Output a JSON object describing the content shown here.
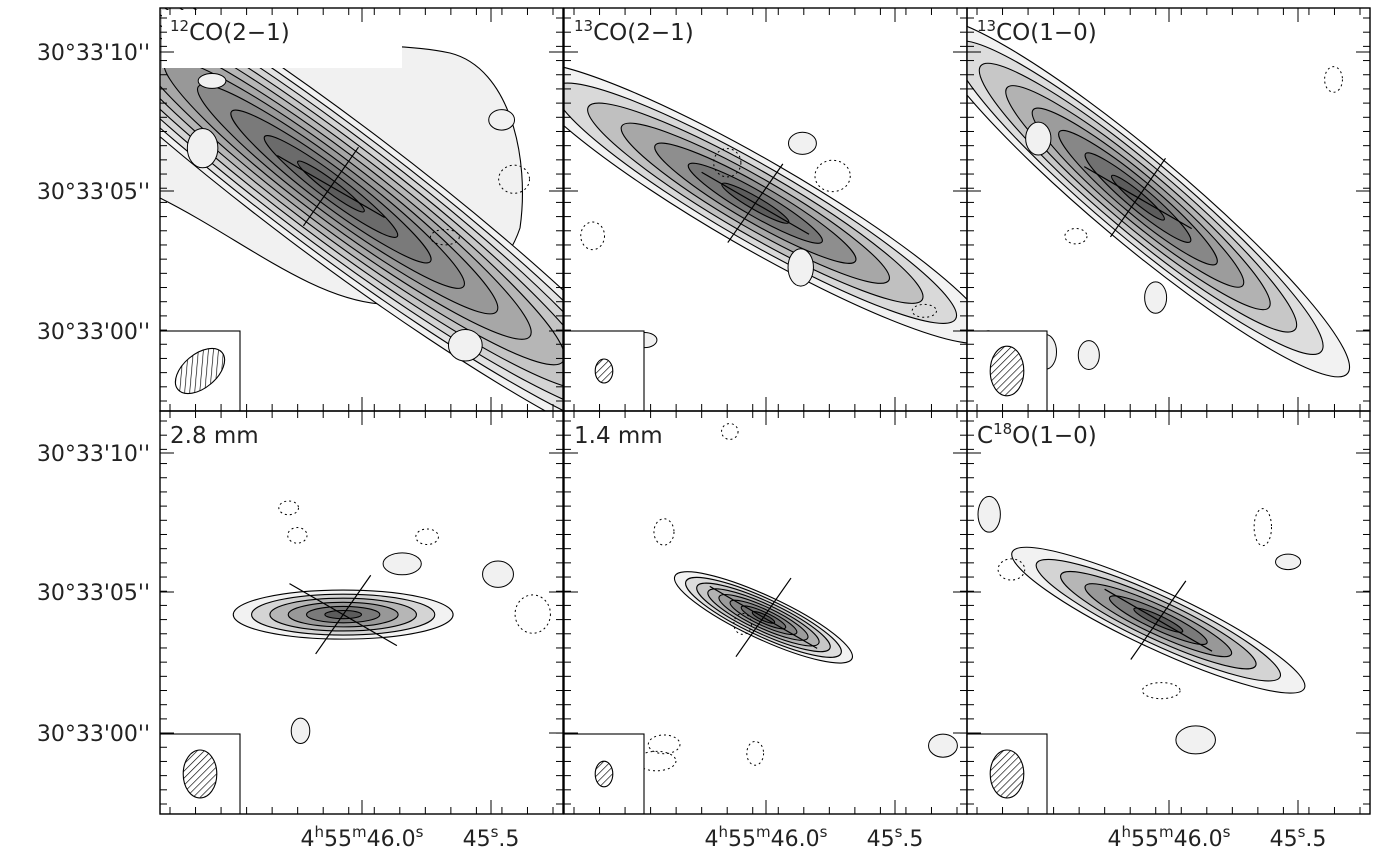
{
  "chart_data": {
    "type": "contour-map-grid",
    "layout": {
      "rows": 2,
      "cols": 3
    },
    "y_ticks": [
      "30°33'10''",
      "30°33'05''",
      "30°33'00''"
    ],
    "x_ticks": [
      {
        "main": "4",
        "h": "h",
        "m1": "55",
        "m": "m",
        "s1": "46.0",
        "s": "s"
      },
      {
        "main": "45",
        "s": "s",
        "rest": ".5"
      }
    ],
    "panels": [
      {
        "label_sup": "12",
        "label": "CO(2−1)",
        "peak": [
          45.9,
          5.2
        ],
        "sigma": [
          0.22,
          2.6
        ],
        "pa": 37,
        "levels": 11,
        "blob_scale": 1.7,
        "beam": [
          0.72,
          0.42,
          -40
        ],
        "has_background_shade": true
      },
      {
        "label_sup": "13",
        "label": "CO(2−1)",
        "peak": [
          45.85,
          4.6
        ],
        "sigma": [
          0.17,
          2.2
        ],
        "pa": 30,
        "levels": 7,
        "blob_scale": 1.3,
        "beam": [
          0.22,
          0.3,
          0
        ]
      },
      {
        "label_sup": "13",
        "label": "CO(1−0)",
        "peak": [
          45.9,
          4.8
        ],
        "sigma": [
          0.16,
          2.1
        ],
        "pa": 40,
        "levels": 8,
        "blob_scale": 1.4,
        "beam": [
          0.42,
          0.62,
          0
        ]
      },
      {
        "label_sup": "",
        "label": "2.8 mm",
        "peak": [
          45.87,
          4.3
        ],
        "sigma": [
          0.09,
          1.6
        ],
        "pa": 0,
        "levels": 6,
        "blob_scale": 1.0,
        "beam": [
          0.42,
          0.6,
          0
        ]
      },
      {
        "label_sup": "",
        "label": "1.4 mm",
        "peak": [
          45.83,
          4.2
        ],
        "sigma": [
          0.08,
          1.4
        ],
        "pa": 25,
        "levels": 8,
        "blob_scale": 1.0,
        "beam": [
          0.22,
          0.32,
          0
        ]
      },
      {
        "label_sup": "18",
        "label_prefix": "C",
        "label": "O(1−0)",
        "peak": [
          45.85,
          4.1
        ],
        "sigma": [
          0.12,
          1.7
        ],
        "pa": 25,
        "levels": 6,
        "blob_scale": 1.1,
        "beam": [
          0.42,
          0.6,
          0
        ]
      }
    ]
  }
}
